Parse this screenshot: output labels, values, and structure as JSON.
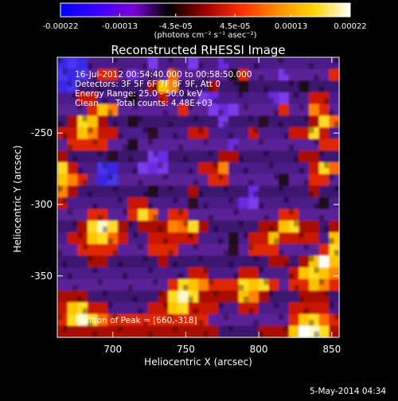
{
  "chart_data": {
    "type": "heatmap",
    "title": "Reconstructed RHESSI Image",
    "xlabel": "Heliocentric X (arcsec)",
    "ylabel": "Heliocentric Y (arcsec)",
    "xlim": [
      662,
      855
    ],
    "ylim": [
      -393,
      -197
    ],
    "x_ticks": [
      "700",
      "750",
      "800",
      "850"
    ],
    "x_tick_values": [
      700,
      750,
      800,
      850
    ],
    "y_ticks": [
      "-250",
      "-300",
      "-350"
    ],
    "y_tick_values": [
      -250,
      -300,
      -350
    ],
    "colorbar": {
      "range": [
        -0.00022,
        0.00022
      ],
      "tick_labels": [
        "-0.00022",
        "-0.00013",
        "-4.5e-05",
        "4.5e-05",
        "0.00013",
        "0.00022"
      ],
      "tick_values": [
        -0.00022,
        -0.00013,
        -4.5e-05,
        4.5e-05,
        0.00013,
        0.00022
      ],
      "units": "(photons cm⁻² s⁻¹ asec⁻²)",
      "colormap": [
        "#0000ff",
        "#3a00ff",
        "#7a00d8",
        "#000000",
        "#9e0000",
        "#ff3000",
        "#ff8c00",
        "#ffd600",
        "#ffffff"
      ]
    },
    "annotations": {
      "time_range": "16-Jul-2012 00:54:40.000 to 00:58:50.000",
      "detectors": "Detectors: 3F 5F 6F 7F 8F 9F, Att 0",
      "energy": "Energy Range: 25.0 - 50.0 keV",
      "clean": "Clean",
      "total_counts": "Total counts: 4.48E+03",
      "peak": "Position of Peak = [660,-318]"
    },
    "grid_rows": [
      "BBBPPPPPPVPPPVPPVPPPPPPPPPPP",
      "BBBPRRPVPPPOPPPPPKRPPPVPPPPR",
      "BBPPPPPPPRYOPPPRPPKPPPPPKPPP",
      "PPRRPPPKPPRPPPVVPPPPPVVPPRRP",
      "PPPRYOPPPPPPRPPVVVPPPPRPPORP",
      "PRYYRPPKPPPPPPPPVPPPKPPPPRYO",
      "RRYORRPPPKPPPRRPPPPRPPPRRYRP",
      "PRRRRPPKPPPPPPPPPVPPPPPPPPRR",
      "RPPPPKPPPVVPPPPPRRPPPPPPRRPP",
      "YRPPBBPPVVVPPPRROPPPPPPPPRYO",
      "YORPBBPPPPPPPPPRRPPPPPKPPRRP",
      "ORPPPPPPPKPPPRPPPPPVPPPPPRPP",
      "RPPPPPPRRPPPPKPPPPVVPPPPPPKP",
      "PPPRRPPRYOPRRPPPPPPPPPRRPPPP",
      "PPRYWYRPRRROOYRPPPPPRRYYRRPR",
      "PRRYYORPPRRRRRPPPKPRRYRRRRPY",
      "PPRRRRPPPRRRPPPPPKPRRRPPPPRY",
      "PPPRRPPPPPRPPPPPPPPPPRRPRYWY",
      "PPPPPPPPPPPPPRRPPPRRPPPRYYYO",
      "PPPPPPPPPPPRYYORRRYYYRPRRYOR",
      "RRRPPPPPPPRYWYRRRRYORPPPRRRP",
      "RYYRRPPPPRRYYRRRPPRRPPPRRRRP",
      "RYWYORRRRRRRRRRPPPPPPPPRYYOR",
      "RRRRRRRRRRRRRRRRPPPPRRRYWWYR"
    ],
    "footer_date": "5-May-2014 04:34"
  }
}
